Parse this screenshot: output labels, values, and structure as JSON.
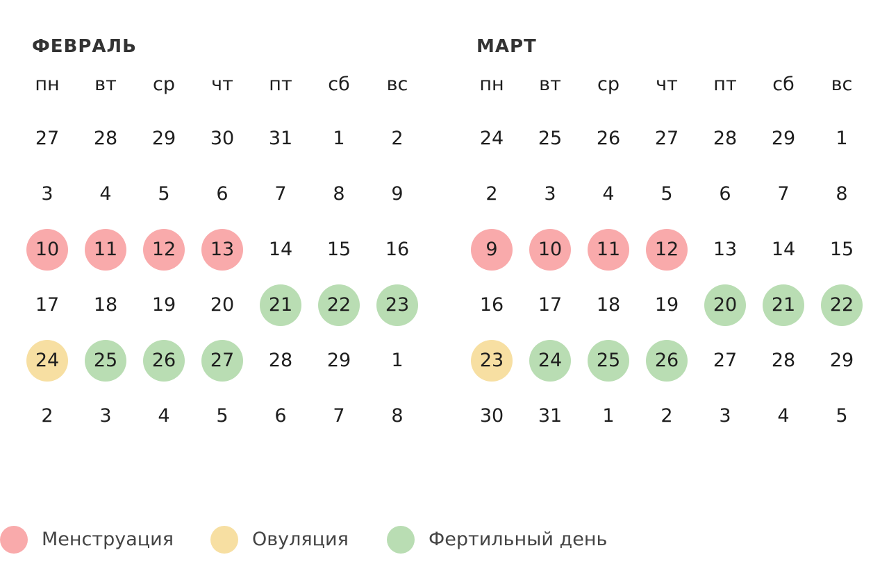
{
  "colors": {
    "menstruation": "#f9aaab",
    "ovulation": "#f7dfa2",
    "fertile": "#b9ddb3"
  },
  "weekdays": [
    "пн",
    "вт",
    "ср",
    "чт",
    "пт",
    "сб",
    "вс"
  ],
  "months": [
    {
      "title": "ФЕВРАЛЬ",
      "weeks": [
        [
          {
            "d": "27"
          },
          {
            "d": "28"
          },
          {
            "d": "29"
          },
          {
            "d": "30"
          },
          {
            "d": "31"
          },
          {
            "d": "1"
          },
          {
            "d": "2"
          }
        ],
        [
          {
            "d": "3"
          },
          {
            "d": "4"
          },
          {
            "d": "5"
          },
          {
            "d": "6"
          },
          {
            "d": "7"
          },
          {
            "d": "8"
          },
          {
            "d": "9"
          }
        ],
        [
          {
            "d": "10",
            "t": "menstruation"
          },
          {
            "d": "11",
            "t": "menstruation"
          },
          {
            "d": "12",
            "t": "menstruation"
          },
          {
            "d": "13",
            "t": "menstruation"
          },
          {
            "d": "14"
          },
          {
            "d": "15"
          },
          {
            "d": "16"
          }
        ],
        [
          {
            "d": "17"
          },
          {
            "d": "18"
          },
          {
            "d": "19"
          },
          {
            "d": "20"
          },
          {
            "d": "21",
            "t": "fertile"
          },
          {
            "d": "22",
            "t": "fertile"
          },
          {
            "d": "23",
            "t": "fertile"
          }
        ],
        [
          {
            "d": "24",
            "t": "ovulation"
          },
          {
            "d": "25",
            "t": "fertile"
          },
          {
            "d": "26",
            "t": "fertile"
          },
          {
            "d": "27",
            "t": "fertile"
          },
          {
            "d": "28"
          },
          {
            "d": "29"
          },
          {
            "d": "1"
          }
        ],
        [
          {
            "d": "2"
          },
          {
            "d": "3"
          },
          {
            "d": "4"
          },
          {
            "d": "5"
          },
          {
            "d": "6"
          },
          {
            "d": "7"
          },
          {
            "d": "8"
          }
        ]
      ]
    },
    {
      "title": "МАРТ",
      "weeks": [
        [
          {
            "d": "24"
          },
          {
            "d": "25"
          },
          {
            "d": "26"
          },
          {
            "d": "27"
          },
          {
            "d": "28"
          },
          {
            "d": "29"
          },
          {
            "d": "1"
          }
        ],
        [
          {
            "d": "2"
          },
          {
            "d": "3"
          },
          {
            "d": "4"
          },
          {
            "d": "5"
          },
          {
            "d": "6"
          },
          {
            "d": "7"
          },
          {
            "d": "8"
          }
        ],
        [
          {
            "d": "9",
            "t": "menstruation"
          },
          {
            "d": "10",
            "t": "menstruation"
          },
          {
            "d": "11",
            "t": "menstruation"
          },
          {
            "d": "12",
            "t": "menstruation"
          },
          {
            "d": "13"
          },
          {
            "d": "14"
          },
          {
            "d": "15"
          }
        ],
        [
          {
            "d": "16"
          },
          {
            "d": "17"
          },
          {
            "d": "18"
          },
          {
            "d": "19"
          },
          {
            "d": "20",
            "t": "fertile"
          },
          {
            "d": "21",
            "t": "fertile"
          },
          {
            "d": "22",
            "t": "fertile"
          }
        ],
        [
          {
            "d": "23",
            "t": "ovulation"
          },
          {
            "d": "24",
            "t": "fertile"
          },
          {
            "d": "25",
            "t": "fertile"
          },
          {
            "d": "26",
            "t": "fertile"
          },
          {
            "d": "27"
          },
          {
            "d": "28"
          },
          {
            "d": "29"
          }
        ],
        [
          {
            "d": "30"
          },
          {
            "d": "31"
          },
          {
            "d": "1"
          },
          {
            "d": "2"
          },
          {
            "d": "3"
          },
          {
            "d": "4"
          },
          {
            "d": "5"
          }
        ]
      ]
    }
  ],
  "legend": [
    {
      "type": "menstruation",
      "label": "Менструация"
    },
    {
      "type": "ovulation",
      "label": "Овуляция"
    },
    {
      "type": "fertile",
      "label": "Фертильный день"
    }
  ]
}
